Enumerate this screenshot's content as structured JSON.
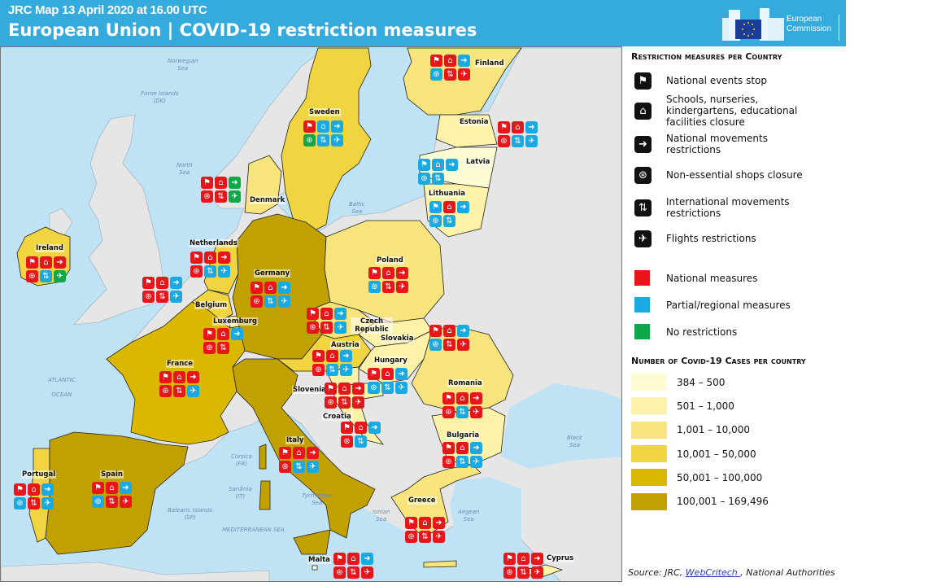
{
  "header": {
    "subtitle": "JRC Map 13 April 2020 at 16.00 UTC",
    "title": "European Union | COVID-19 restriction measures",
    "logo_text": "European Commission"
  },
  "colors": {
    "national": "#e8161b",
    "partial": "#1ba9e1",
    "none": "#10a64a",
    "water": "#bfe3f5",
    "other_land": "#e6e6e6",
    "header": "#35aadd"
  },
  "measure_types": [
    {
      "key": "events",
      "label": "National events stop",
      "icon": "events-icon",
      "glyph": "⚑"
    },
    {
      "key": "schools",
      "label": "Schools, nurseries, kindergartens, educational facilities closure",
      "icon": "school-icon",
      "glyph": "⌂"
    },
    {
      "key": "movements",
      "label": "National movements restrictions",
      "icon": "walking-person-icon",
      "glyph": "➜"
    },
    {
      "key": "shops",
      "label": "Non-essential shops closure",
      "icon": "shop-icon",
      "glyph": "⊛"
    },
    {
      "key": "international",
      "label": "International movements restrictions",
      "icon": "arrows-updown-icon",
      "glyph": "⇅"
    },
    {
      "key": "flights",
      "label": "Flights restrictions",
      "icon": "airplane-icon",
      "glyph": "✈"
    }
  ],
  "legend": {
    "measures_title": "Restriction measures per Country",
    "status_items": [
      {
        "key": "national",
        "label": "National measures"
      },
      {
        "key": "partial",
        "label": "Partial/regional measures"
      },
      {
        "key": "none",
        "label": "No restrictions"
      }
    ],
    "cases_title": "Number of Covid-19 Cases per country",
    "case_classes": [
      {
        "label": "384 – 500",
        "color": "#fefcd2"
      },
      {
        "label": "501 – 1,000",
        "color": "#fdf2a8"
      },
      {
        "label": "1,001 – 10,000",
        "color": "#f8e47c"
      },
      {
        "label": "10,001 – 50,000",
        "color": "#f1d540"
      },
      {
        "label": "50,001 – 100,000",
        "color": "#dbb800"
      },
      {
        "label": "100,001 – 169,496",
        "color": "#c1a100"
      }
    ]
  },
  "source": {
    "prefix": "Source: JRC, ",
    "link": "WebCritech ",
    "suffix": ", National Authorities"
  },
  "sea_labels": [
    "Norwegian\nSea",
    "Faroe Islands\n(DK)",
    "North\nSea",
    "Baltic\nSea",
    "ATLANTIC\n\nOCEAN",
    "Corsica\n(FR)",
    "Sardinia\n(IT)",
    "Tyrrhenian\nSea",
    "Balearic Islands\n(SP)",
    "MEDITERRANEAN SEA",
    "Ionian\nSea",
    "Aegean\nSea",
    "Black\nSea"
  ],
  "countries": [
    {
      "name": "Finland",
      "case_class": 2,
      "measures": [
        "national",
        "national",
        "partial",
        "partial",
        "national",
        "national"
      ]
    },
    {
      "name": "Sweden",
      "case_class": 3,
      "measures": [
        "national",
        "partial",
        "partial",
        "none",
        "partial",
        "partial"
      ]
    },
    {
      "name": "Estonia",
      "case_class": 1,
      "measures": [
        "national",
        "national",
        "partial",
        "national",
        "partial",
        "partial"
      ]
    },
    {
      "name": "Latvia",
      "case_class": 0,
      "measures": [
        "partial",
        "partial",
        "partial",
        "partial",
        "partial",
        null
      ]
    },
    {
      "name": "Lithuania",
      "case_class": 1,
      "measures": [
        "partial",
        "national",
        "partial",
        "partial",
        "partial",
        null
      ]
    },
    {
      "name": "Denmark",
      "case_class": 2,
      "measures": [
        "national",
        "national",
        "none",
        "national",
        "national",
        "none"
      ]
    },
    {
      "name": "Ireland",
      "case_class": 3,
      "measures": [
        "national",
        "national",
        "national",
        "national",
        "partial",
        "none"
      ]
    },
    {
      "name": "Netherlands",
      "case_class": 3,
      "measures": [
        "national",
        "national",
        "national",
        "national",
        "partial",
        "partial"
      ]
    },
    {
      "name": "Belgium",
      "case_class": 3,
      "measures": [
        "national",
        "national",
        "partial",
        "national",
        "national",
        "partial"
      ]
    },
    {
      "name": "Luxemburg",
      "case_class": 2,
      "measures": [
        "national",
        "national",
        "partial",
        "national",
        "national",
        null
      ]
    },
    {
      "name": "Germany",
      "case_class": 5,
      "measures": [
        "national",
        "national",
        "partial",
        "national",
        "partial",
        "partial"
      ]
    },
    {
      "name": "Poland",
      "case_class": 2,
      "measures": [
        "national",
        "national",
        "national",
        "partial",
        "national",
        "national"
      ]
    },
    {
      "name": "Czech Republic",
      "case_class": 2,
      "measures": [
        "national",
        "national",
        "partial",
        "national",
        "national",
        "partial"
      ]
    },
    {
      "name": "Slovakia",
      "case_class": 1,
      "measures": [
        "national",
        "national",
        "partial",
        "partial",
        "national",
        "national"
      ]
    },
    {
      "name": "Austria",
      "case_class": 3,
      "measures": [
        "national",
        "national",
        "partial",
        "national",
        "partial",
        "partial"
      ]
    },
    {
      "name": "Hungary",
      "case_class": 1,
      "measures": [
        "national",
        "national",
        "partial",
        "partial",
        "partial",
        "partial"
      ]
    },
    {
      "name": "Slovenia",
      "case_class": 1,
      "measures": [
        "national",
        "national",
        "national",
        "national",
        "national",
        "national"
      ]
    },
    {
      "name": "Croatia",
      "case_class": 1,
      "measures": [
        "national",
        "national",
        "partial",
        "national",
        "partial",
        null
      ]
    },
    {
      "name": "Romania",
      "case_class": 2,
      "measures": [
        "national",
        "national",
        "national",
        "national",
        "partial",
        "national"
      ]
    },
    {
      "name": "Bulgaria",
      "case_class": 1,
      "measures": [
        "national",
        "national",
        "partial",
        "national",
        "partial",
        "partial"
      ]
    },
    {
      "name": "France",
      "case_class": 4,
      "measures": [
        "national",
        "national",
        "national",
        "national",
        "national",
        "partial"
      ]
    },
    {
      "name": "Italy",
      "case_class": 5,
      "measures": [
        "national",
        "national",
        "national",
        "national",
        "partial",
        "partial"
      ]
    },
    {
      "name": "Portugal",
      "case_class": 3,
      "measures": [
        "national",
        "national",
        "partial",
        "partial",
        "national",
        "partial"
      ]
    },
    {
      "name": "Spain",
      "case_class": 5,
      "measures": [
        "national",
        "national",
        "partial",
        "partial",
        "national",
        "national"
      ]
    },
    {
      "name": "Greece",
      "case_class": 2,
      "measures": [
        "national",
        "national",
        "national",
        "national",
        "national",
        "national"
      ]
    },
    {
      "name": "Malta",
      "case_class": 0,
      "measures": [
        "national",
        "national",
        "partial",
        "national",
        "national",
        "national"
      ]
    },
    {
      "name": "Cyprus",
      "case_class": 1,
      "measures": [
        "national",
        "national",
        "national",
        "national",
        "national",
        "national"
      ]
    }
  ]
}
